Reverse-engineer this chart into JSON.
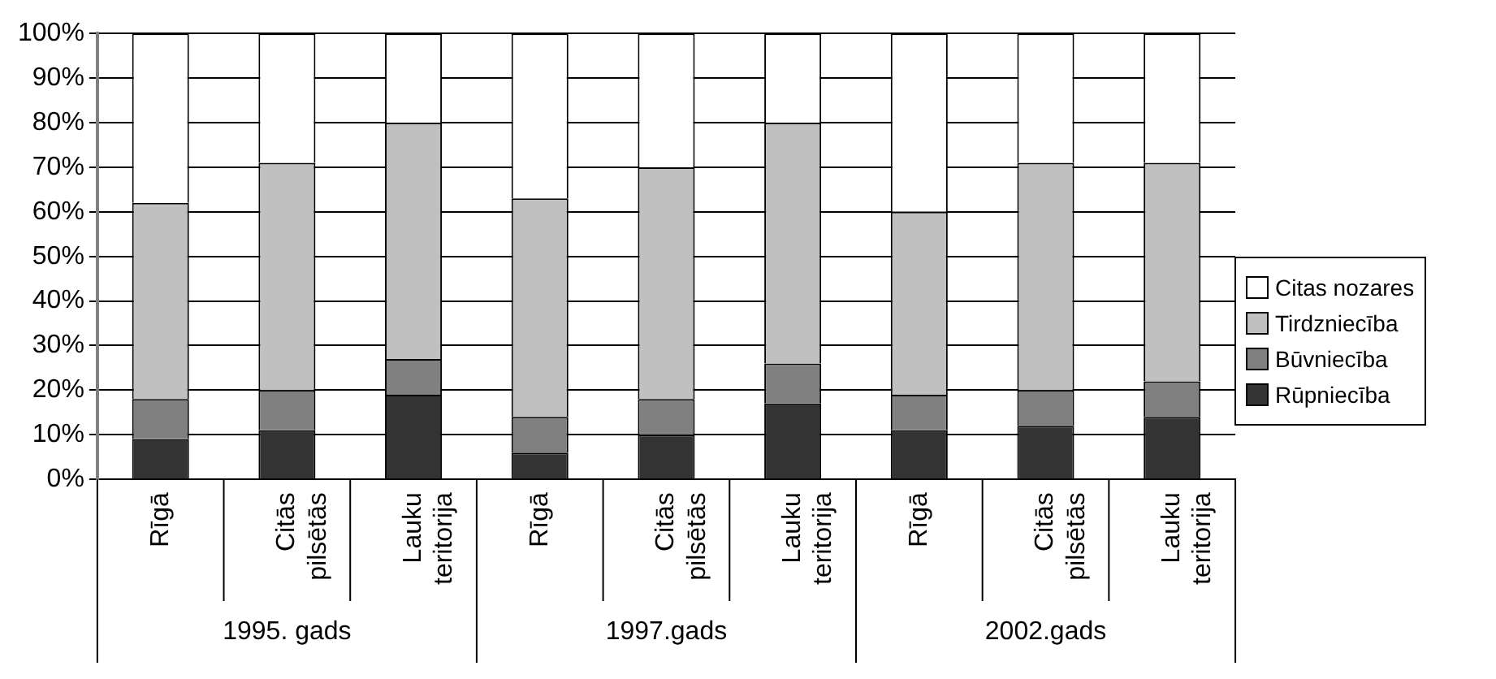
{
  "chart_data": {
    "type": "bar",
    "stacked": true,
    "categories": [
      "Rīgā",
      "Citās pilsētās",
      "Lauku teritorija",
      "Rīgā",
      "Citās pilsētās",
      "Lauku teritorija",
      "Rīgā",
      "Citās pilsētās",
      "Lauku teritorija"
    ],
    "series": [
      {
        "name": "Rūpniecība",
        "color": "#333333",
        "values": [
          9,
          11,
          19,
          6,
          10,
          17,
          11,
          12,
          14
        ]
      },
      {
        "name": "Būvniecība",
        "color": "#808080",
        "values": [
          9,
          9,
          8,
          8,
          8,
          9,
          8,
          8,
          8
        ]
      },
      {
        "name": "Tirdzniecība",
        "color": "#c0c0c0",
        "values": [
          44,
          51,
          53,
          49,
          52,
          54,
          41,
          51,
          49
        ]
      },
      {
        "name": "Citas nozares",
        "color": "#ffffff",
        "values": [
          38,
          29,
          20,
          37,
          30,
          20,
          40,
          29,
          29
        ]
      }
    ],
    "ylim": [
      0,
      100
    ],
    "yticks": [
      {
        "value": 0,
        "label": "0%"
      },
      {
        "value": 10,
        "label": "10%"
      },
      {
        "value": 20,
        "label": "20%"
      },
      {
        "value": 30,
        "label": "30%"
      },
      {
        "value": 40,
        "label": "40%"
      },
      {
        "value": 50,
        "label": "50%"
      },
      {
        "value": 60,
        "label": "60%"
      },
      {
        "value": 70,
        "label": "70%"
      },
      {
        "value": 80,
        "label": "80%"
      },
      {
        "value": 90,
        "label": "90%"
      },
      {
        "value": 100,
        "label": "100%"
      }
    ],
    "grid": "y",
    "legend": "right",
    "annotations": [
      "1995. gads",
      "1997.gads",
      "2002.gads"
    ]
  }
}
